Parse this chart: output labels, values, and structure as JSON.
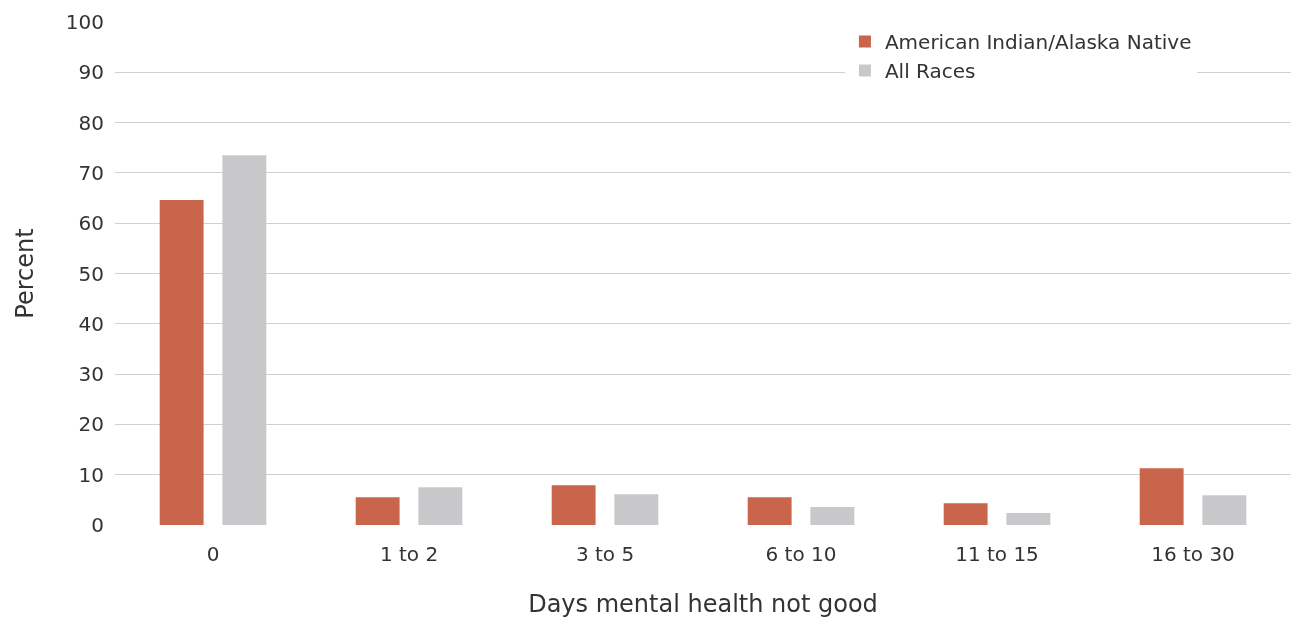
{
  "chart_data": {
    "type": "bar",
    "xlabel": "Days mental health not good",
    "ylabel": "Percent",
    "categories": [
      "0",
      "1 to 2",
      "3 to 5",
      "6 to 10",
      "11 to 15",
      "16 to 30"
    ],
    "series": [
      {
        "name": "American Indian/Alaska Native",
        "color": "#c8654a",
        "values": [
          64.6,
          5.5,
          7.9,
          5.5,
          4.3,
          11.3
        ]
      },
      {
        "name": "All Races",
        "color": "#c8c8ca",
        "values": [
          73.5,
          7.5,
          6.1,
          3.6,
          2.4,
          5.9
        ]
      }
    ],
    "ylim": [
      0,
      100
    ],
    "yticks": [
      0,
      10,
      20,
      30,
      40,
      50,
      60,
      70,
      80,
      90,
      100
    ],
    "grid": "y",
    "legend": "top right"
  }
}
